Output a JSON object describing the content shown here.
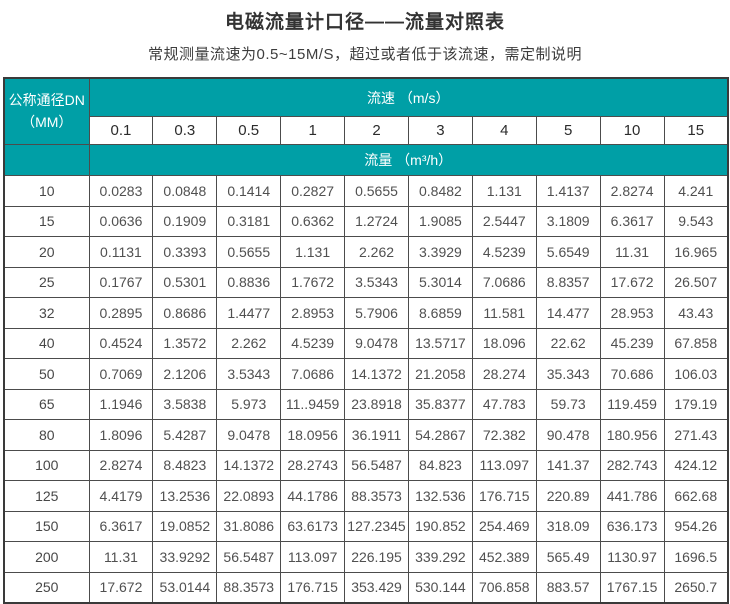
{
  "page": {
    "title": "电磁流量计口径——流量对照表",
    "subtitle": "常规测量流速为0.5~15M/S，超过或者低于该流速，需定制说明"
  },
  "colors": {
    "header_teal": "#009fa6",
    "header_text": "#ffffff",
    "border": "#4c4c4c",
    "body_text": "#505050"
  },
  "chart_data": {
    "type": "table",
    "title": "电磁流量计口径——流量对照表",
    "subtitle": "常规测量流速为0.5~15M/S，超过或者低于该流速，需定制说明",
    "corner_header_line1": "公称通径DN",
    "corner_header_line2": "（MM）",
    "speed_group_header": "流速 （m/s）",
    "flow_group_header": "流量 （m³/h）",
    "speed_columns": [
      "0.1",
      "0.3",
      "0.5",
      "1",
      "2",
      "3",
      "4",
      "5",
      "10",
      "15"
    ],
    "rows": [
      {
        "dn": "10",
        "values": [
          "0.0283",
          "0.0848",
          "0.1414",
          "0.2827",
          "0.5655",
          "0.8482",
          "1.131",
          "1.4137",
          "2.8274",
          "4.241"
        ]
      },
      {
        "dn": "15",
        "values": [
          "0.0636",
          "0.1909",
          "0.3181",
          "0.6362",
          "1.2724",
          "1.9085",
          "2.5447",
          "3.1809",
          "6.3617",
          "9.543"
        ]
      },
      {
        "dn": "20",
        "values": [
          "0.1131",
          "0.3393",
          "0.5655",
          "1.131",
          "2.262",
          "3.3929",
          "4.5239",
          "5.6549",
          "11.31",
          "16.965"
        ]
      },
      {
        "dn": "25",
        "values": [
          "0.1767",
          "0.5301",
          "0.8836",
          "1.7672",
          "3.5343",
          "5.3014",
          "7.0686",
          "8.8357",
          "17.672",
          "26.507"
        ]
      },
      {
        "dn": "32",
        "values": [
          "0.2895",
          "0.8686",
          "1.4477",
          "2.8953",
          "5.7906",
          "8.6859",
          "11.581",
          "14.477",
          "28.953",
          "43.43"
        ]
      },
      {
        "dn": "40",
        "values": [
          "0.4524",
          "1.3572",
          "2.262",
          "4.5239",
          "9.0478",
          "13.5717",
          "18.096",
          "22.62",
          "45.239",
          "67.858"
        ]
      },
      {
        "dn": "50",
        "values": [
          "0.7069",
          "2.1206",
          "3.5343",
          "7.0686",
          "14.1372",
          "21.2058",
          "28.274",
          "35.343",
          "70.686",
          "106.03"
        ]
      },
      {
        "dn": "65",
        "values": [
          "1.1946",
          "3.5838",
          "5.973",
          "11..9459",
          "23.8918",
          "35.8377",
          "47.783",
          "59.73",
          "119.459",
          "179.19"
        ]
      },
      {
        "dn": "80",
        "values": [
          "1.8096",
          "5.4287",
          "9.0478",
          "18.0956",
          "36.1911",
          "54.2867",
          "72.382",
          "90.478",
          "180.956",
          "271.43"
        ]
      },
      {
        "dn": "100",
        "values": [
          "2.8274",
          "8.4823",
          "14.1372",
          "28.2743",
          "56.5487",
          "84.823",
          "113.097",
          "141.37",
          "282.743",
          "424.12"
        ]
      },
      {
        "dn": "125",
        "values": [
          "4.4179",
          "13.2536",
          "22.0893",
          "44.1786",
          "88.3573",
          "132.536",
          "176.715",
          "220.89",
          "441.786",
          "662.68"
        ]
      },
      {
        "dn": "150",
        "values": [
          "6.3617",
          "19.0852",
          "31.8086",
          "63.6173",
          "127.2345",
          "190.852",
          "254.469",
          "318.09",
          "636.173",
          "954.26"
        ]
      },
      {
        "dn": "200",
        "values": [
          "11.31",
          "33.9292",
          "56.5487",
          "113.097",
          "226.195",
          "339.292",
          "452.389",
          "565.49",
          "1130.97",
          "1696.5"
        ]
      },
      {
        "dn": "250",
        "values": [
          "17.672",
          "53.0144",
          "88.3573",
          "176.715",
          "353.429",
          "530.144",
          "706.858",
          "883.57",
          "1767.15",
          "2650.7"
        ]
      }
    ]
  }
}
